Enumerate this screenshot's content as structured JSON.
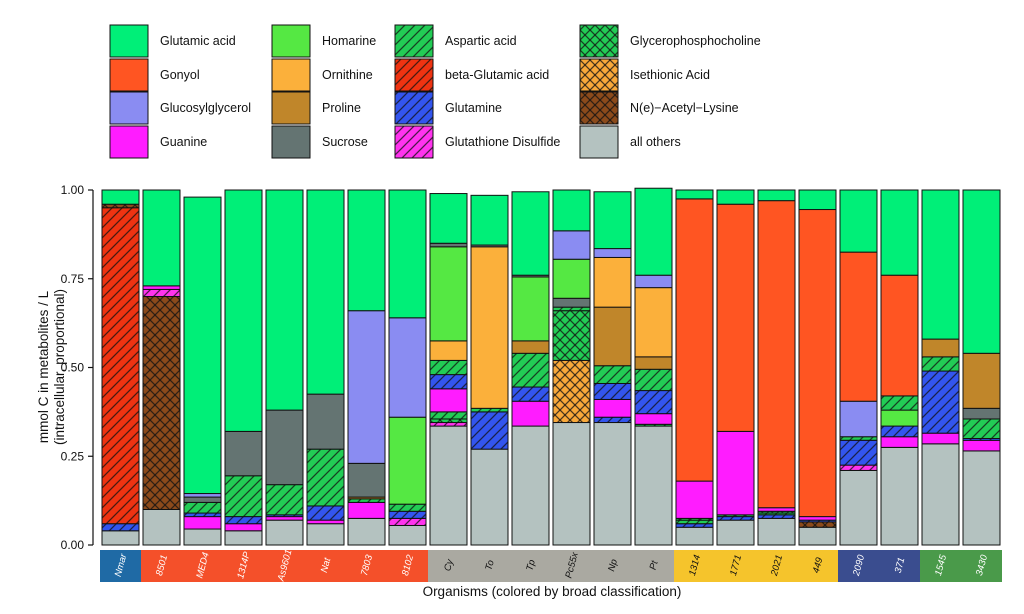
{
  "chart_data": {
    "type": "bar",
    "stacked": true,
    "xlabel": "Organisms (colored by broad classification)",
    "ylabel": [
      "mmol C in metabolites / L",
      "(intracellular, proportional)"
    ],
    "ylim": [
      0,
      1
    ],
    "yticks": [
      "0.00",
      "0.25",
      "0.50",
      "0.75",
      "1.00"
    ],
    "grid": false,
    "legend_position": "top",
    "series_order": [
      "all others",
      "Glycerophosphocholine",
      "Isethionic Acid",
      "N(e)-Acetyl-Lysine",
      "Aspartic acid",
      "beta-Glutamic acid",
      "Glutamine",
      "Glutathione Disulfide",
      "Guanine",
      "Glucosylglycerol",
      "Homarine",
      "Ornithine",
      "Proline",
      "Sucrose",
      "Gonyol",
      "Glutamic acid"
    ],
    "legend": [
      {
        "key": "glu",
        "label": "Glutamic acid",
        "color": "#00ef78",
        "pattern": "none"
      },
      {
        "key": "gon",
        "label": "Gonyol",
        "color": "#ff5522",
        "pattern": "none"
      },
      {
        "key": "gg",
        "label": "Glucosylglycerol",
        "color": "#8a8cf2",
        "pattern": "none"
      },
      {
        "key": "gua",
        "label": "Guanine",
        "color": "#ff1cff",
        "pattern": "none"
      },
      {
        "key": "hom",
        "label": "Homarine",
        "color": "#55e843",
        "pattern": "none"
      },
      {
        "key": "orn",
        "label": "Ornithine",
        "color": "#fbb03b",
        "pattern": "none"
      },
      {
        "key": "pro",
        "label": "Proline",
        "color": "#c0862a",
        "pattern": "none"
      },
      {
        "key": "suc",
        "label": "Sucrose",
        "color": "#647472",
        "pattern": "none"
      },
      {
        "key": "asp",
        "label": "Aspartic acid",
        "color": "#22cc55",
        "pattern": "diag"
      },
      {
        "key": "bglu",
        "label": "beta-Glutamic acid",
        "color": "#ee3311",
        "pattern": "diag"
      },
      {
        "key": "gln",
        "label": "Glutamine",
        "color": "#3355ee",
        "pattern": "diag"
      },
      {
        "key": "gsh",
        "label": "Glutathione Disulfide",
        "color": "#ff33ee",
        "pattern": "diag"
      },
      {
        "key": "gpc",
        "label": "Glycerophosphocholine",
        "color": "#22cc55",
        "pattern": "cross"
      },
      {
        "key": "ise",
        "label": "Isethionic Acid",
        "color": "#f8a83a",
        "pattern": "cross"
      },
      {
        "key": "nal",
        "label": "N(e)−Acetyl−Lysine",
        "color": "#8b4a1b",
        "pattern": "cross"
      },
      {
        "key": "oth",
        "label": "all others",
        "color": "#b4c2c0",
        "pattern": "none"
      }
    ],
    "categories": [
      {
        "name": "Nmar",
        "group": "Archaea"
      },
      {
        "name": "8501",
        "group": "Red"
      },
      {
        "name": "MED4",
        "group": "Red"
      },
      {
        "name": "1314P",
        "group": "Red"
      },
      {
        "name": "As9601",
        "group": "Red"
      },
      {
        "name": "Nat",
        "group": "Red"
      },
      {
        "name": "7803",
        "group": "Red"
      },
      {
        "name": "8102",
        "group": "Red"
      },
      {
        "name": "Cy",
        "group": "Grey"
      },
      {
        "name": "To",
        "group": "Grey"
      },
      {
        "name": "Tp",
        "group": "Grey"
      },
      {
        "name": "Pc55x",
        "group": "Grey"
      },
      {
        "name": "Np",
        "group": "Grey"
      },
      {
        "name": "Pt",
        "group": "Grey"
      },
      {
        "name": "1314",
        "group": "Yellow"
      },
      {
        "name": "1771",
        "group": "Yellow"
      },
      {
        "name": "2021",
        "group": "Yellow"
      },
      {
        "name": "449",
        "group": "Yellow"
      },
      {
        "name": "2090",
        "group": "Navy"
      },
      {
        "name": "371",
        "group": "Navy"
      },
      {
        "name": "1545",
        "group": "Green"
      },
      {
        "name": "3430",
        "group": "Green"
      }
    ],
    "group_colors": {
      "Archaea": "#1f6aa5",
      "Red": "#f4502a",
      "Grey": "#aaa9a1",
      "Yellow": "#f5c42c",
      "Navy": "#3a4d8f",
      "Green": "#4a9a4a"
    },
    "group_text_colors": {
      "Archaea": "#ffffff",
      "Red": "#ffffff",
      "Grey": "#111111",
      "Yellow": "#111111",
      "Navy": "#ffffff",
      "Green": "#ffffff"
    },
    "stacks": [
      [
        [
          "oth",
          0.04
        ],
        [
          "gln",
          0.02
        ],
        [
          "bglu",
          0.89
        ],
        [
          "nal",
          0.01
        ],
        [
          "glu",
          0.04
        ]
      ],
      [
        [
          "oth",
          0.1
        ],
        [
          "nal",
          0.6
        ],
        [
          "gsh",
          0.02
        ],
        [
          "gua",
          0.01
        ],
        [
          "glu",
          0.27
        ]
      ],
      [
        [
          "oth",
          0.045
        ],
        [
          "gua",
          0.035
        ],
        [
          "gln",
          0.01
        ],
        [
          "asp",
          0.03
        ],
        [
          "suc",
          0.015
        ],
        [
          "gg",
          0.01
        ],
        [
          "glu",
          0.835
        ]
      ],
      [
        [
          "oth",
          0.04
        ],
        [
          "gua",
          0.02
        ],
        [
          "gln",
          0.02
        ],
        [
          "asp",
          0.115
        ],
        [
          "suc",
          0.125
        ],
        [
          "glu",
          0.68
        ]
      ],
      [
        [
          "oth",
          0.07
        ],
        [
          "gua",
          0.01
        ],
        [
          "gln",
          0.005
        ],
        [
          "asp",
          0.085
        ],
        [
          "suc",
          0.21
        ],
        [
          "glu",
          0.62
        ]
      ],
      [
        [
          "oth",
          0.06
        ],
        [
          "gua",
          0.01
        ],
        [
          "gln",
          0.04
        ],
        [
          "asp",
          0.16
        ],
        [
          "suc",
          0.155
        ],
        [
          "glu",
          0.575
        ]
      ],
      [
        [
          "oth",
          0.075
        ],
        [
          "gua",
          0.045
        ],
        [
          "asp",
          0.01
        ],
        [
          "pro",
          0.005
        ],
        [
          "suc",
          0.095
        ],
        [
          "gg",
          0.43
        ],
        [
          "glu",
          0.34
        ]
      ],
      [
        [
          "oth",
          0.055
        ],
        [
          "gsh",
          0.02
        ],
        [
          "gln",
          0.02
        ],
        [
          "asp",
          0.02
        ],
        [
          "hom",
          0.245
        ],
        [
          "gg",
          0.28
        ],
        [
          "glu",
          0.36
        ]
      ],
      [
        [
          "oth",
          0.335
        ],
        [
          "gsh",
          0.01
        ],
        [
          "gpc",
          0.01
        ],
        [
          "asp",
          0.02
        ],
        [
          "gua",
          0.065
        ],
        [
          "gln",
          0.04
        ],
        [
          "asp",
          0.04
        ],
        [
          "orn",
          0.055
        ],
        [
          "hom",
          0.265
        ],
        [
          "suc",
          0.01
        ],
        [
          "glu",
          0.14
        ]
      ],
      [
        [
          "oth",
          0.27
        ],
        [
          "gln",
          0.105
        ],
        [
          "asp",
          0.01
        ],
        [
          "orn",
          0.455
        ],
        [
          "suc",
          0.005
        ],
        [
          "glu",
          0.14
        ]
      ],
      [
        [
          "oth",
          0.335
        ],
        [
          "gua",
          0.07
        ],
        [
          "gln",
          0.04
        ],
        [
          "asp",
          0.095
        ],
        [
          "pro",
          0.035
        ],
        [
          "hom",
          0.18
        ],
        [
          "suc",
          0.005
        ],
        [
          "glu",
          0.235
        ]
      ],
      [
        [
          "oth",
          0.345
        ],
        [
          "ise",
          0.175
        ],
        [
          "gpc",
          0.14
        ],
        [
          "asp",
          0.01
        ],
        [
          "suc",
          0.025
        ],
        [
          "hom",
          0.11
        ],
        [
          "gg",
          0.08
        ],
        [
          "glu",
          0.115
        ]
      ],
      [
        [
          "oth",
          0.345
        ],
        [
          "gln",
          0.015
        ],
        [
          "gua",
          0.05
        ],
        [
          "gln",
          0.045
        ],
        [
          "asp",
          0.05
        ],
        [
          "pro",
          0.165
        ],
        [
          "orn",
          0.14
        ],
        [
          "gg",
          0.025
        ],
        [
          "glu",
          0.16
        ]
      ],
      [
        [
          "oth",
          0.335
        ],
        [
          "asp",
          0.005
        ],
        [
          "gua",
          0.03
        ],
        [
          "gln",
          0.065
        ],
        [
          "asp",
          0.06
        ],
        [
          "pro",
          0.035
        ],
        [
          "orn",
          0.195
        ],
        [
          "gg",
          0.035
        ],
        [
          "glu",
          0.245
        ]
      ],
      [
        [
          "oth",
          0.05
        ],
        [
          "gln",
          0.01
        ],
        [
          "asp",
          0.01
        ],
        [
          "gpc",
          0.005
        ],
        [
          "gua",
          0.105
        ],
        [
          "gon",
          0.795
        ],
        [
          "glu",
          0.025
        ]
      ],
      [
        [
          "oth",
          0.07
        ],
        [
          "gln",
          0.01
        ],
        [
          "gpc",
          0.005
        ],
        [
          "gua",
          0.235
        ],
        [
          "gon",
          0.64
        ],
        [
          "glu",
          0.04
        ]
      ],
      [
        [
          "oth",
          0.075
        ],
        [
          "gln",
          0.01
        ],
        [
          "asp",
          0.005
        ],
        [
          "gpc",
          0.005
        ],
        [
          "gua",
          0.01
        ],
        [
          "gon",
          0.865
        ],
        [
          "glu",
          0.03
        ]
      ],
      [
        [
          "oth",
          0.05
        ],
        [
          "nal",
          0.015
        ],
        [
          "gln",
          0.005
        ],
        [
          "gua",
          0.01
        ],
        [
          "gon",
          0.865
        ],
        [
          "glu",
          0.055
        ]
      ],
      [
        [
          "oth",
          0.21
        ],
        [
          "gsh",
          0.015
        ],
        [
          "gln",
          0.07
        ],
        [
          "asp",
          0.01
        ],
        [
          "gg",
          0.1
        ],
        [
          "gon",
          0.42
        ],
        [
          "glu",
          0.175
        ]
      ],
      [
        [
          "oth",
          0.275
        ],
        [
          "gua",
          0.03
        ],
        [
          "gln",
          0.03
        ],
        [
          "hom",
          0.045
        ],
        [
          "asp",
          0.04
        ],
        [
          "gon",
          0.34
        ],
        [
          "glu",
          0.24
        ]
      ],
      [
        [
          "oth",
          0.285
        ],
        [
          "gua",
          0.03
        ],
        [
          "gln",
          0.175
        ],
        [
          "asp",
          0.04
        ],
        [
          "pro",
          0.05
        ],
        [
          "glu",
          0.42
        ]
      ],
      [
        [
          "oth",
          0.265
        ],
        [
          "gua",
          0.03
        ],
        [
          "gln",
          0.005
        ],
        [
          "asp",
          0.055
        ],
        [
          "suc",
          0.03
        ],
        [
          "pro",
          0.155
        ],
        [
          "glu",
          0.46
        ]
      ]
    ]
  }
}
